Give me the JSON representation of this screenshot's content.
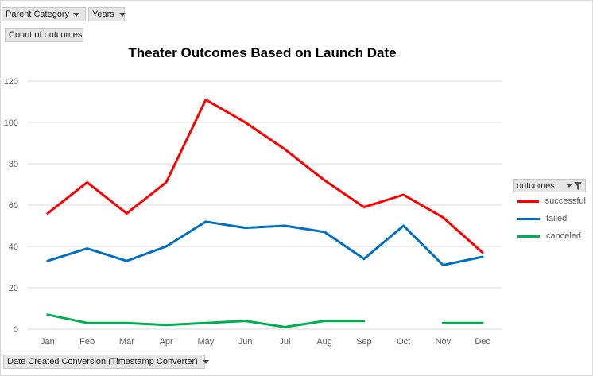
{
  "controls": {
    "parent_category": "Parent Category",
    "years": "Years",
    "value_field": "Count of outcomes",
    "axis_field": "Date Created Conversion (Timestamp Converter)"
  },
  "legend": {
    "title": "outcomes"
  },
  "colors": {
    "successful": "#ff0000",
    "failed": "#0070c0",
    "canceled": "#00b050",
    "grid": "#d9d9d9"
  },
  "chart_data": {
    "type": "line",
    "title": "Theater Outcomes Based on Launch Date",
    "xlabel": "",
    "ylabel": "",
    "categories": [
      "Jan",
      "Feb",
      "Mar",
      "Apr",
      "May",
      "Jun",
      "Jul",
      "Aug",
      "Sep",
      "Oct",
      "Nov",
      "Dec"
    ],
    "ylim": [
      0,
      120
    ],
    "yticks": [
      0,
      20,
      40,
      60,
      80,
      100,
      120
    ],
    "grid": true,
    "legend_position": "right",
    "series": [
      {
        "name": "successful",
        "values": [
          56,
          71,
          56,
          71,
          111,
          100,
          87,
          72,
          59,
          65,
          54,
          37
        ]
      },
      {
        "name": "failed",
        "values": [
          33,
          39,
          33,
          40,
          52,
          49,
          50,
          47,
          34,
          50,
          31,
          35
        ]
      },
      {
        "name": "canceled",
        "values": [
          7,
          3,
          3,
          2,
          3,
          4,
          1,
          4,
          4,
          null,
          3,
          3
        ]
      }
    ]
  }
}
